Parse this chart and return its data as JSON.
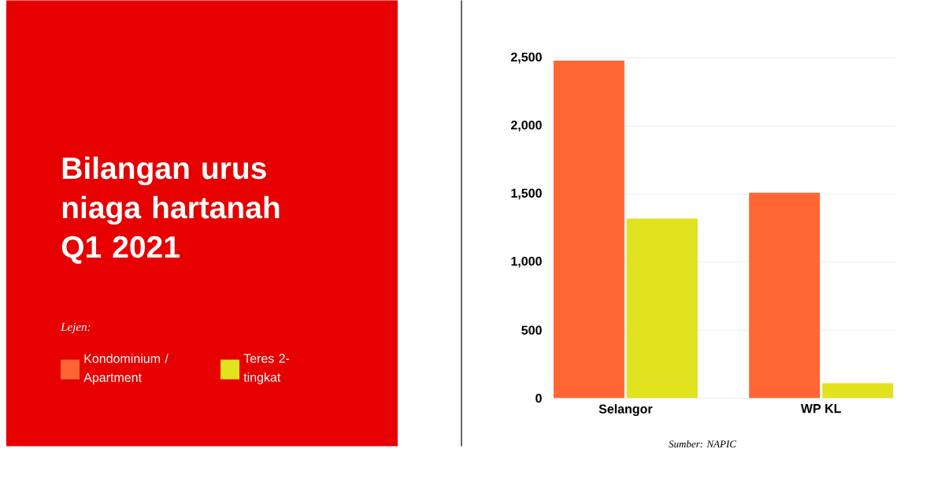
{
  "chart_data": {
    "type": "bar",
    "title": "Bilangan urus niaga hartanah Q1 2021",
    "legend_title": "Lejen:",
    "categories": [
      "Selangor",
      "WP KL"
    ],
    "series": [
      {
        "name": "Kondominium / Apartment",
        "color": "#ff6633",
        "values": [
          2480,
          1510
        ]
      },
      {
        "name": "Teres 2-tingkat",
        "color": "#e1e31e",
        "values": [
          1320,
          110
        ]
      }
    ],
    "ylim": [
      0,
      2500
    ],
    "yticks": [
      0,
      500,
      {
        "value": 1000,
        "label": "1,000"
      },
      {
        "value": 1500,
        "label": "1,500"
      },
      {
        "value": 2000,
        "label": "2,000"
      },
      {
        "value": 2500,
        "label": "2,500"
      }
    ],
    "grid": "y",
    "legend": "left",
    "annotations": [
      "Sumber: NAPIC"
    ]
  }
}
